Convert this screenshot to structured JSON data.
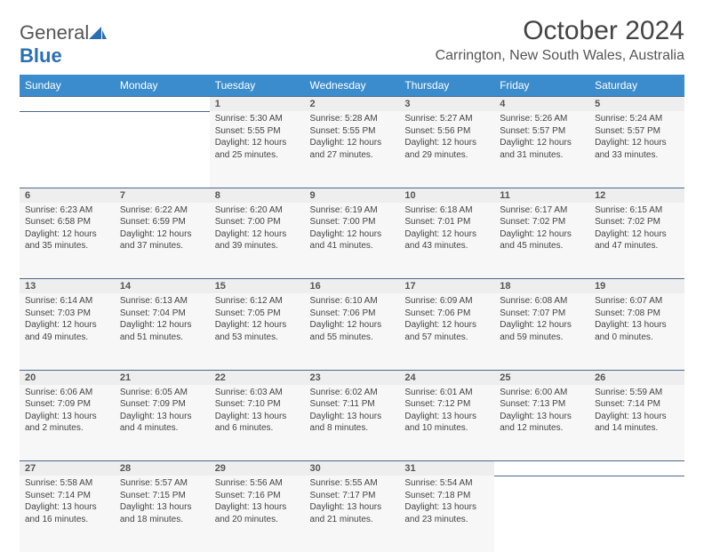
{
  "logo": {
    "text_general": "General",
    "text_blue": "Blue"
  },
  "header": {
    "month_title": "October 2024",
    "location": "Carrington, New South Wales, Australia"
  },
  "colors": {
    "header_bg": "#3b8ccc",
    "header_text": "#ffffff",
    "daynum_bg": "#eeeeee",
    "cell_bg": "#f7f7f7",
    "border": "#4a6a8a",
    "page_bg": "#ffffff",
    "text": "#444444",
    "logo_blue": "#2a6fb5"
  },
  "weekdays": [
    "Sunday",
    "Monday",
    "Tuesday",
    "Wednesday",
    "Thursday",
    "Friday",
    "Saturday"
  ],
  "weeks": [
    [
      null,
      null,
      {
        "n": "1",
        "sr": "Sunrise: 5:30 AM",
        "ss": "Sunset: 5:55 PM",
        "dl": "Daylight: 12 hours and 25 minutes."
      },
      {
        "n": "2",
        "sr": "Sunrise: 5:28 AM",
        "ss": "Sunset: 5:55 PM",
        "dl": "Daylight: 12 hours and 27 minutes."
      },
      {
        "n": "3",
        "sr": "Sunrise: 5:27 AM",
        "ss": "Sunset: 5:56 PM",
        "dl": "Daylight: 12 hours and 29 minutes."
      },
      {
        "n": "4",
        "sr": "Sunrise: 5:26 AM",
        "ss": "Sunset: 5:57 PM",
        "dl": "Daylight: 12 hours and 31 minutes."
      },
      {
        "n": "5",
        "sr": "Sunrise: 5:24 AM",
        "ss": "Sunset: 5:57 PM",
        "dl": "Daylight: 12 hours and 33 minutes."
      }
    ],
    [
      {
        "n": "6",
        "sr": "Sunrise: 6:23 AM",
        "ss": "Sunset: 6:58 PM",
        "dl": "Daylight: 12 hours and 35 minutes."
      },
      {
        "n": "7",
        "sr": "Sunrise: 6:22 AM",
        "ss": "Sunset: 6:59 PM",
        "dl": "Daylight: 12 hours and 37 minutes."
      },
      {
        "n": "8",
        "sr": "Sunrise: 6:20 AM",
        "ss": "Sunset: 7:00 PM",
        "dl": "Daylight: 12 hours and 39 minutes."
      },
      {
        "n": "9",
        "sr": "Sunrise: 6:19 AM",
        "ss": "Sunset: 7:00 PM",
        "dl": "Daylight: 12 hours and 41 minutes."
      },
      {
        "n": "10",
        "sr": "Sunrise: 6:18 AM",
        "ss": "Sunset: 7:01 PM",
        "dl": "Daylight: 12 hours and 43 minutes."
      },
      {
        "n": "11",
        "sr": "Sunrise: 6:17 AM",
        "ss": "Sunset: 7:02 PM",
        "dl": "Daylight: 12 hours and 45 minutes."
      },
      {
        "n": "12",
        "sr": "Sunrise: 6:15 AM",
        "ss": "Sunset: 7:02 PM",
        "dl": "Daylight: 12 hours and 47 minutes."
      }
    ],
    [
      {
        "n": "13",
        "sr": "Sunrise: 6:14 AM",
        "ss": "Sunset: 7:03 PM",
        "dl": "Daylight: 12 hours and 49 minutes."
      },
      {
        "n": "14",
        "sr": "Sunrise: 6:13 AM",
        "ss": "Sunset: 7:04 PM",
        "dl": "Daylight: 12 hours and 51 minutes."
      },
      {
        "n": "15",
        "sr": "Sunrise: 6:12 AM",
        "ss": "Sunset: 7:05 PM",
        "dl": "Daylight: 12 hours and 53 minutes."
      },
      {
        "n": "16",
        "sr": "Sunrise: 6:10 AM",
        "ss": "Sunset: 7:06 PM",
        "dl": "Daylight: 12 hours and 55 minutes."
      },
      {
        "n": "17",
        "sr": "Sunrise: 6:09 AM",
        "ss": "Sunset: 7:06 PM",
        "dl": "Daylight: 12 hours and 57 minutes."
      },
      {
        "n": "18",
        "sr": "Sunrise: 6:08 AM",
        "ss": "Sunset: 7:07 PM",
        "dl": "Daylight: 12 hours and 59 minutes."
      },
      {
        "n": "19",
        "sr": "Sunrise: 6:07 AM",
        "ss": "Sunset: 7:08 PM",
        "dl": "Daylight: 13 hours and 0 minutes."
      }
    ],
    [
      {
        "n": "20",
        "sr": "Sunrise: 6:06 AM",
        "ss": "Sunset: 7:09 PM",
        "dl": "Daylight: 13 hours and 2 minutes."
      },
      {
        "n": "21",
        "sr": "Sunrise: 6:05 AM",
        "ss": "Sunset: 7:09 PM",
        "dl": "Daylight: 13 hours and 4 minutes."
      },
      {
        "n": "22",
        "sr": "Sunrise: 6:03 AM",
        "ss": "Sunset: 7:10 PM",
        "dl": "Daylight: 13 hours and 6 minutes."
      },
      {
        "n": "23",
        "sr": "Sunrise: 6:02 AM",
        "ss": "Sunset: 7:11 PM",
        "dl": "Daylight: 13 hours and 8 minutes."
      },
      {
        "n": "24",
        "sr": "Sunrise: 6:01 AM",
        "ss": "Sunset: 7:12 PM",
        "dl": "Daylight: 13 hours and 10 minutes."
      },
      {
        "n": "25",
        "sr": "Sunrise: 6:00 AM",
        "ss": "Sunset: 7:13 PM",
        "dl": "Daylight: 13 hours and 12 minutes."
      },
      {
        "n": "26",
        "sr": "Sunrise: 5:59 AM",
        "ss": "Sunset: 7:14 PM",
        "dl": "Daylight: 13 hours and 14 minutes."
      }
    ],
    [
      {
        "n": "27",
        "sr": "Sunrise: 5:58 AM",
        "ss": "Sunset: 7:14 PM",
        "dl": "Daylight: 13 hours and 16 minutes."
      },
      {
        "n": "28",
        "sr": "Sunrise: 5:57 AM",
        "ss": "Sunset: 7:15 PM",
        "dl": "Daylight: 13 hours and 18 minutes."
      },
      {
        "n": "29",
        "sr": "Sunrise: 5:56 AM",
        "ss": "Sunset: 7:16 PM",
        "dl": "Daylight: 13 hours and 20 minutes."
      },
      {
        "n": "30",
        "sr": "Sunrise: 5:55 AM",
        "ss": "Sunset: 7:17 PM",
        "dl": "Daylight: 13 hours and 21 minutes."
      },
      {
        "n": "31",
        "sr": "Sunrise: 5:54 AM",
        "ss": "Sunset: 7:18 PM",
        "dl": "Daylight: 13 hours and 23 minutes."
      },
      null,
      null
    ]
  ]
}
